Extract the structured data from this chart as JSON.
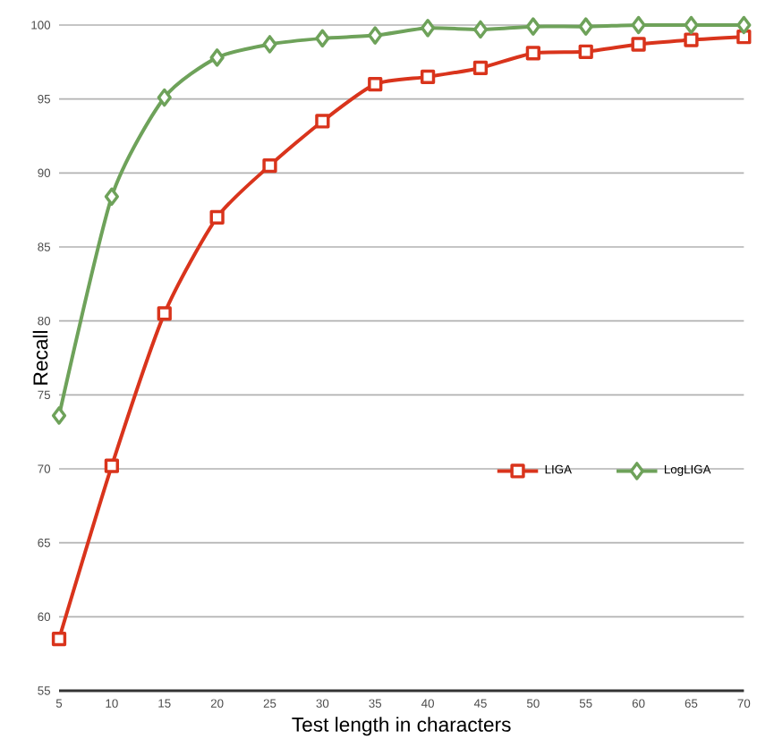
{
  "chart_data": {
    "type": "line",
    "xlabel": "Test length in characters",
    "ylabel": "Recall",
    "x": [
      5,
      10,
      15,
      20,
      25,
      30,
      35,
      40,
      45,
      50,
      55,
      60,
      65,
      70
    ],
    "series": [
      {
        "name": "LIGA",
        "color": "#d9341c",
        "marker": "square",
        "values": [
          58.5,
          70.2,
          80.5,
          87.0,
          90.5,
          93.5,
          96.0,
          96.5,
          97.1,
          98.1,
          98.2,
          98.7,
          99.0,
          99.2
        ]
      },
      {
        "name": "LogLIGA",
        "color": "#6ea25a",
        "marker": "diamond",
        "values": [
          73.6,
          88.4,
          95.1,
          97.8,
          98.7,
          99.1,
          99.3,
          99.8,
          99.7,
          99.9,
          99.9,
          100,
          100,
          100
        ]
      }
    ],
    "xlim": [
      5,
      70
    ],
    "ylim": [
      55,
      100
    ],
    "xticks": [
      5,
      10,
      15,
      20,
      25,
      30,
      35,
      40,
      45,
      50,
      55,
      60,
      65,
      70
    ],
    "yticks": [
      55,
      60,
      65,
      70,
      75,
      80,
      85,
      90,
      95,
      100
    ],
    "grid": "y",
    "legend": "right"
  }
}
